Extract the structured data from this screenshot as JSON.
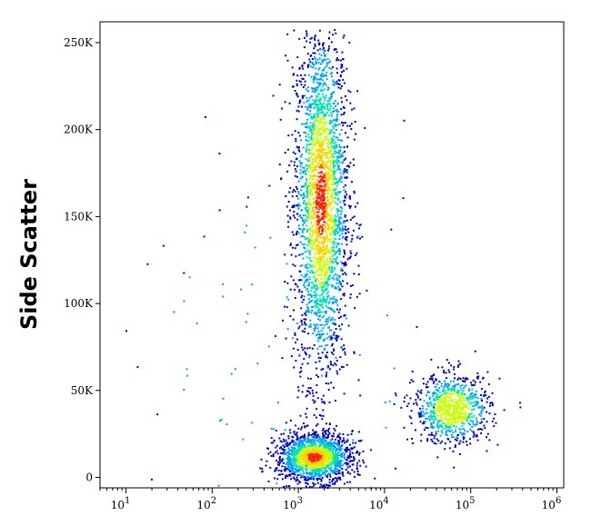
{
  "chart_data": {
    "type": "scatter",
    "style": "density-heatmap",
    "title": "",
    "xlabel": "",
    "ylabel": "Side Scatter",
    "xscale": "log",
    "xlim": [
      5,
      1200000
    ],
    "ylim": [
      -6000,
      262000
    ],
    "y_ticks": [
      {
        "value": 0,
        "label": "0"
      },
      {
        "value": 50000,
        "label": "50K"
      },
      {
        "value": 100000,
        "label": "100K"
      },
      {
        "value": 150000,
        "label": "150K"
      },
      {
        "value": 200000,
        "label": "200K"
      },
      {
        "value": 250000,
        "label": "250K"
      }
    ],
    "x_ticks": [
      {
        "value": 10,
        "base": "10",
        "exp": "1"
      },
      {
        "value": 100,
        "base": "10",
        "exp": "2"
      },
      {
        "value": 1000,
        "base": "10",
        "exp": "3"
      },
      {
        "value": 10000,
        "base": "10",
        "exp": "4"
      },
      {
        "value": 100000,
        "base": "10",
        "exp": "5"
      },
      {
        "value": 1000000,
        "base": "10",
        "exp": "6"
      }
    ],
    "populations": [
      {
        "x_center": 1800,
        "y_center": 160000,
        "x_spread_decades": 0.16,
        "y_spread": 52000,
        "weight": 0.52
      },
      {
        "x_center": 1500,
        "y_center": 12000,
        "x_spread_decades": 0.22,
        "y_spread": 7000,
        "weight": 0.3
      },
      {
        "x_center": 60000,
        "y_center": 40000,
        "x_spread_decades": 0.22,
        "y_spread": 10000,
        "weight": 0.16
      },
      {
        "x_center": 800,
        "y_center": 60000,
        "x_spread_decades": 0.9,
        "y_spread": 60000,
        "weight": 0.02
      }
    ],
    "grid": false,
    "legend": "none",
    "colormap": [
      "#0000c8",
      "#00a0ff",
      "#00e0b0",
      "#c8ff00",
      "#ffd000",
      "#ff2000"
    ]
  }
}
